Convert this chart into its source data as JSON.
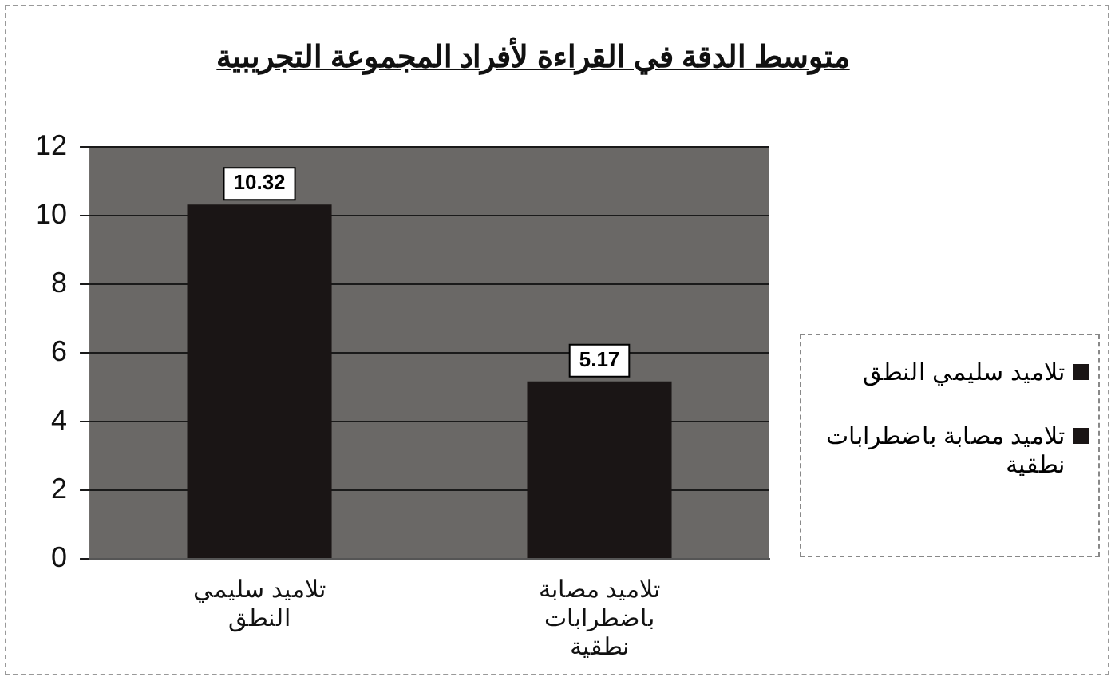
{
  "chart_data": {
    "type": "bar",
    "title": "متوسط الدقة في القراءة لأفراد المجموعة التجريبية",
    "categories": [
      "تلاميد سليمي النطق",
      "تلاميد مصابة باضطرابات نطقية"
    ],
    "series": [
      {
        "name": "تلاميد سليمي النطق",
        "color": "#1a1515",
        "values": [
          10.32,
          null
        ]
      },
      {
        "name": "تلاميد مصابة باضطرابات نطقية",
        "color": "#1a1515",
        "values": [
          null,
          5.17
        ]
      }
    ],
    "ylim": [
      0,
      12
    ],
    "yticks": [
      0,
      2,
      4,
      6,
      8,
      10,
      12
    ],
    "grid": "y",
    "legend": "right",
    "data_labels": true
  }
}
